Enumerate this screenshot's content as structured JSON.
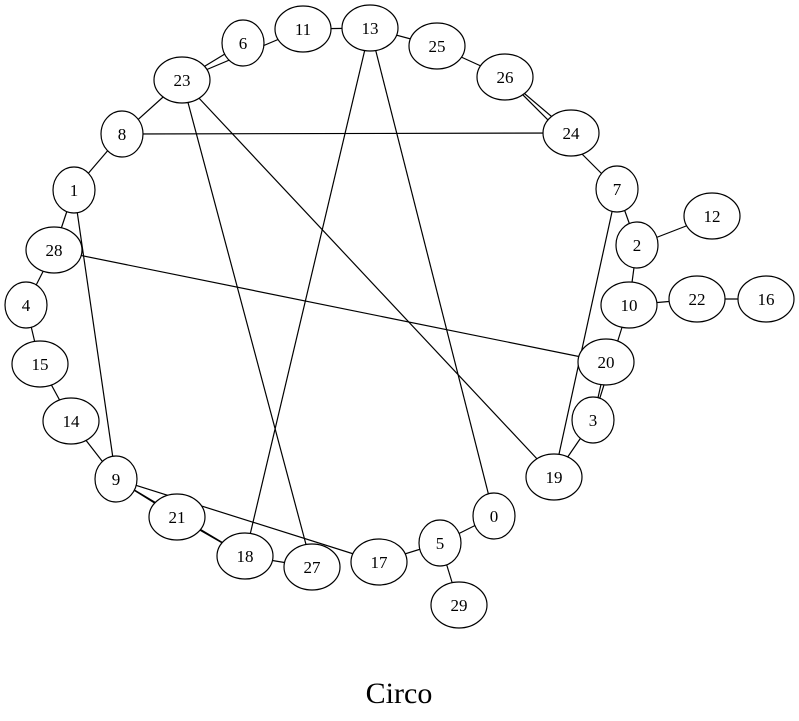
{
  "title": "Circo",
  "graph": {
    "layout": "circo",
    "nodes": [
      "0",
      "1",
      "2",
      "3",
      "4",
      "5",
      "6",
      "7",
      "8",
      "9",
      "10",
      "11",
      "12",
      "13",
      "14",
      "15",
      "16",
      "17",
      "18",
      "19",
      "20",
      "21",
      "22",
      "23",
      "24",
      "25",
      "26",
      "27",
      "28",
      "29"
    ],
    "edges": [
      [
        "6",
        "23"
      ],
      [
        "23",
        "11"
      ],
      [
        "11",
        "13"
      ],
      [
        "13",
        "25"
      ],
      [
        "25",
        "26"
      ],
      [
        "26",
        "24"
      ],
      [
        "26",
        "7"
      ],
      [
        "24",
        "8"
      ],
      [
        "23",
        "8"
      ],
      [
        "8",
        "1"
      ],
      [
        "1",
        "28"
      ],
      [
        "1",
        "9"
      ],
      [
        "28",
        "4"
      ],
      [
        "28",
        "20"
      ],
      [
        "4",
        "15"
      ],
      [
        "15",
        "14"
      ],
      [
        "14",
        "9"
      ],
      [
        "9",
        "21"
      ],
      [
        "9",
        "18"
      ],
      [
        "9",
        "17"
      ],
      [
        "21",
        "18"
      ],
      [
        "18",
        "27"
      ],
      [
        "18",
        "13"
      ],
      [
        "23",
        "27"
      ],
      [
        "23",
        "19"
      ],
      [
        "13",
        "0"
      ],
      [
        "0",
        "5"
      ],
      [
        "5",
        "17"
      ],
      [
        "5",
        "29"
      ],
      [
        "7",
        "2"
      ],
      [
        "7",
        "19"
      ],
      [
        "2",
        "12"
      ],
      [
        "2",
        "10"
      ],
      [
        "10",
        "22"
      ],
      [
        "22",
        "16"
      ],
      [
        "10",
        "3"
      ],
      [
        "20",
        "3"
      ],
      [
        "3",
        "19"
      ]
    ]
  }
}
